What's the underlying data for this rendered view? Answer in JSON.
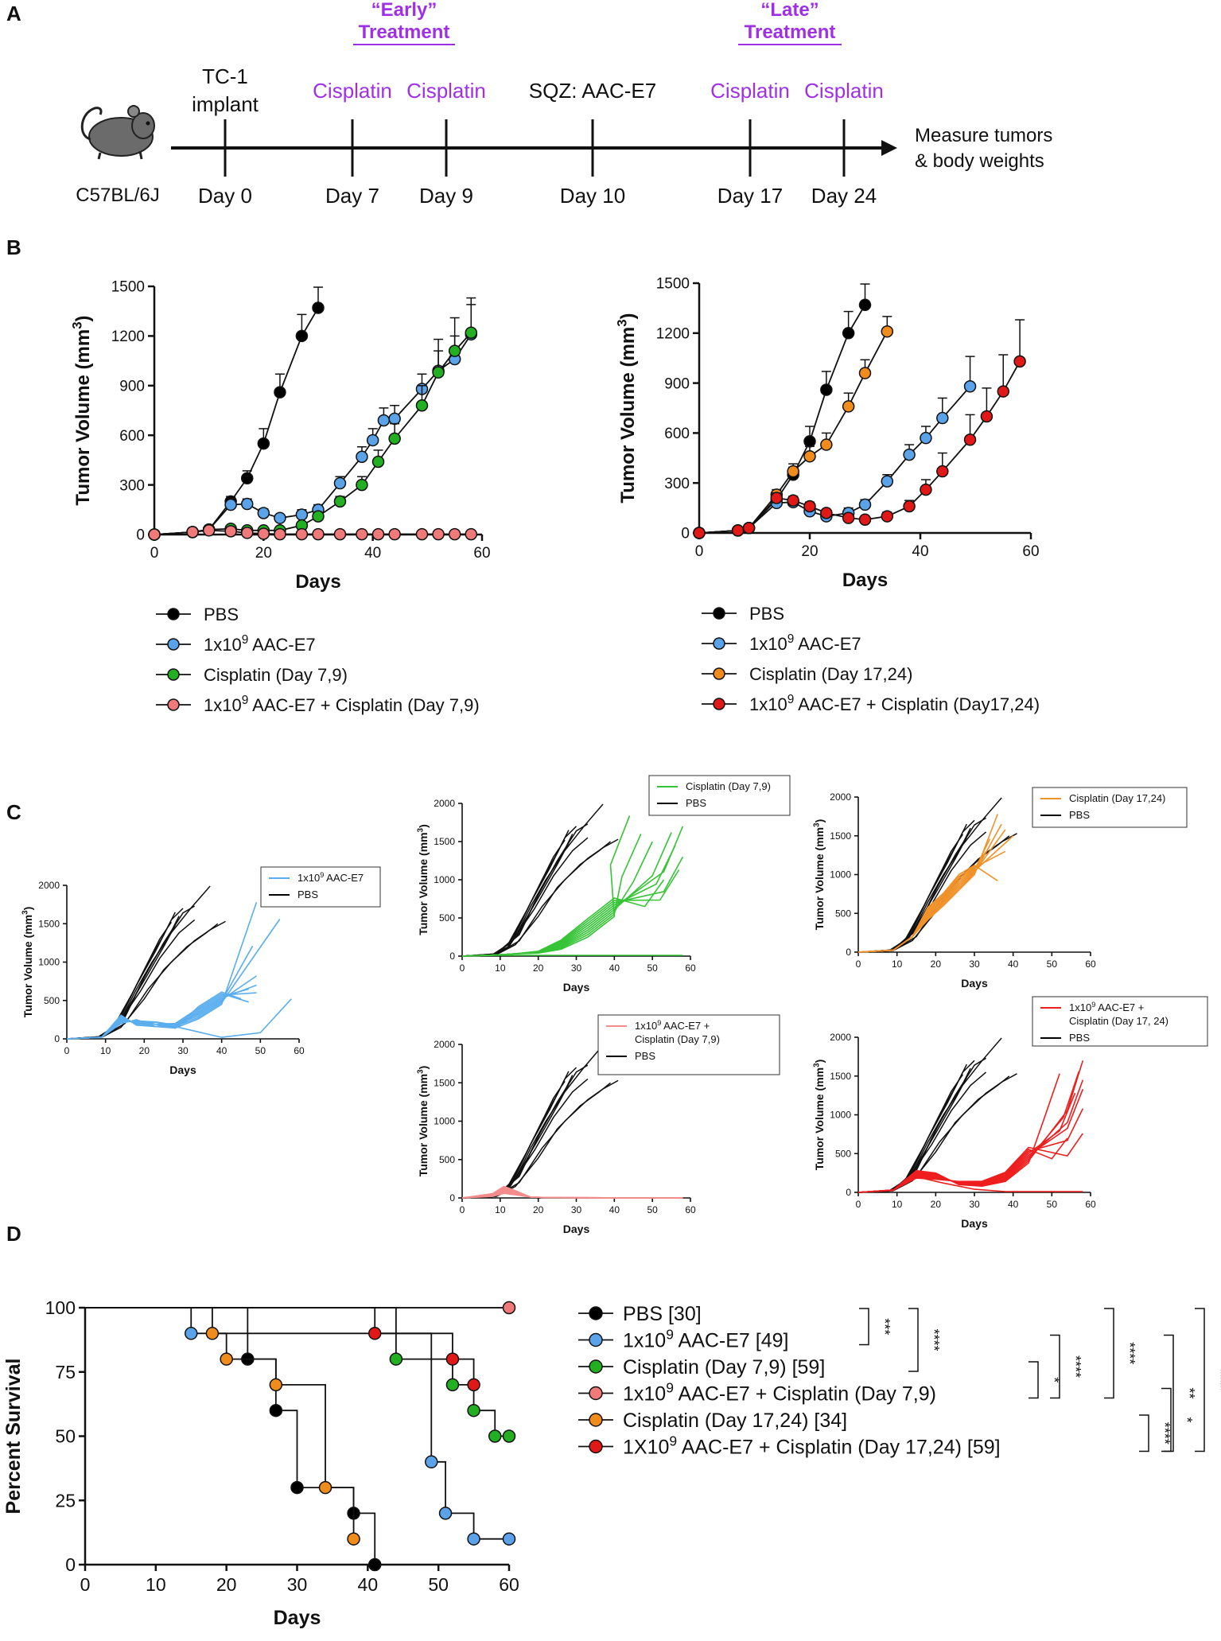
{
  "colors": {
    "pbs": "#000000",
    "aac": "#5aa3e8",
    "cis_early": "#22b022",
    "combo_early": "#f07a7a",
    "cis_late": "#f08c1c",
    "combo_late": "#e01818",
    "purple": "#a030e6",
    "c_blue": "#5aaeee",
    "c_green": "#35c435",
    "c_orange": "#f0922a",
    "c_pink": "#f58c8c",
    "c_red": "#ee1e1e"
  },
  "panels": {
    "a": "A",
    "b": "B",
    "c": "C",
    "d": "D"
  },
  "timeline": {
    "strain": "C57BL/6J",
    "early_quote": "“Early”",
    "early_label": "Treatment",
    "late_quote": "“Late”",
    "late_label": "Treatment",
    "events": [
      {
        "top": "TC-1",
        "top2": "implant",
        "day": "Day 0"
      },
      {
        "top": "Cisplatin",
        "day": "Day 7"
      },
      {
        "top": "Cisplatin",
        "day": "Day 9"
      },
      {
        "top": "SQZ: AAC-E7",
        "day": "Day 10"
      },
      {
        "top": "Cisplatin",
        "day": "Day 17"
      },
      {
        "top": "Cisplatin",
        "day": "Day 24"
      }
    ],
    "end_label1": "Measure tumors",
    "end_label2": "& body weights"
  },
  "chart_data": [
    {
      "id": "b_left",
      "type": "line",
      "ylabel": "Tumor Volume (mm",
      "ylabel_sup": "3",
      "ylabel_end": ")",
      "xlabel": "Days",
      "xlim": [
        0,
        60
      ],
      "ylim": [
        0,
        1500
      ],
      "xticks": [
        "0",
        "20",
        "40",
        "60"
      ],
      "yticks": [
        "0",
        "300",
        "600",
        "900",
        "1200",
        "1500"
      ],
      "series": [
        {
          "name": "PBS",
          "color": "pbs",
          "x": [
            0,
            7,
            10,
            14,
            17,
            20,
            23,
            27,
            30
          ],
          "y": [
            0,
            15,
            30,
            200,
            340,
            550,
            860,
            1200,
            1370
          ],
          "err": [
            0,
            5,
            10,
            30,
            45,
            90,
            110,
            130,
            125
          ]
        },
        {
          "name": "1x10^9 AAC-E7",
          "color": "aac",
          "x": [
            0,
            7,
            10,
            14,
            17,
            20,
            23,
            27,
            30,
            34,
            38,
            40,
            42,
            44,
            49,
            52,
            55,
            58
          ],
          "y": [
            0,
            15,
            30,
            180,
            185,
            130,
            100,
            120,
            150,
            310,
            470,
            570,
            690,
            700,
            880,
            990,
            1060,
            1210
          ],
          "err": [
            0,
            5,
            10,
            40,
            30,
            25,
            20,
            30,
            30,
            40,
            60,
            70,
            75,
            80,
            90,
            120,
            140,
            180
          ]
        },
        {
          "name": "Cisplatin (Day 7,9)",
          "color": "cis_early",
          "x": [
            0,
            7,
            10,
            14,
            17,
            20,
            23,
            27,
            30,
            34,
            38,
            41,
            44,
            49,
            52,
            55,
            58
          ],
          "y": [
            0,
            15,
            30,
            35,
            25,
            25,
            25,
            55,
            110,
            200,
            300,
            440,
            580,
            780,
            980,
            1110,
            1220
          ],
          "err": [
            0,
            5,
            5,
            10,
            8,
            8,
            8,
            12,
            20,
            30,
            50,
            70,
            90,
            120,
            200,
            200,
            210
          ]
        },
        {
          "name": "1x10^9 AAC-E7 + Cisplatin (Day 7,9)",
          "color": "combo_early",
          "x": [
            0,
            7,
            10,
            14,
            17,
            20,
            23,
            27,
            30,
            34,
            38,
            41,
            44,
            49,
            52,
            55,
            58
          ],
          "y": [
            0,
            15,
            25,
            20,
            10,
            5,
            2,
            2,
            2,
            2,
            2,
            2,
            2,
            2,
            2,
            2,
            2
          ],
          "err": [
            0,
            0,
            0,
            0,
            0,
            0,
            0,
            0,
            0,
            0,
            0,
            0,
            0,
            0,
            0,
            0,
            0
          ]
        }
      ],
      "legend": [
        {
          "label": "PBS",
          "color": "pbs"
        },
        {
          "label": "1x10",
          "sup": "9",
          "rest": " AAC-E7",
          "color": "aac"
        },
        {
          "label": "Cisplatin (Day 7,9)",
          "color": "cis_early"
        },
        {
          "label": "1x10",
          "sup": "9",
          "rest": " AAC-E7 + Cisplatin (Day 7,9)",
          "color": "combo_early"
        }
      ]
    },
    {
      "id": "b_right",
      "type": "line",
      "ylabel": "Tumor Volume (mm",
      "ylabel_sup": "3",
      "ylabel_end": ")",
      "xlabel": "Days",
      "xlim": [
        0,
        60
      ],
      "ylim": [
        0,
        1500
      ],
      "xticks": [
        "0",
        "20",
        "40",
        "60"
      ],
      "yticks": [
        "0",
        "300",
        "600",
        "900",
        "1200",
        "1500"
      ],
      "series": [
        {
          "name": "PBS",
          "color": "pbs",
          "x": [
            0,
            7,
            9,
            14,
            17,
            20,
            23,
            27,
            30
          ],
          "y": [
            0,
            15,
            30,
            200,
            350,
            550,
            860,
            1200,
            1370
          ],
          "err": [
            0,
            5,
            10,
            30,
            45,
            90,
            110,
            130,
            125
          ]
        },
        {
          "name": "1x10^9 AAC-E7",
          "color": "aac",
          "x": [
            0,
            7,
            9,
            14,
            17,
            20,
            23,
            27,
            30,
            34,
            38,
            41,
            44,
            49
          ],
          "y": [
            0,
            15,
            30,
            180,
            185,
            130,
            100,
            120,
            170,
            310,
            470,
            570,
            690,
            880
          ],
          "err": [
            0,
            5,
            10,
            40,
            30,
            25,
            20,
            30,
            30,
            40,
            60,
            70,
            120,
            180
          ]
        },
        {
          "name": "Cisplatin (Day 17,24)",
          "color": "cis_late",
          "x": [
            0,
            7,
            9,
            14,
            17,
            20,
            23,
            27,
            30,
            34
          ],
          "y": [
            0,
            15,
            30,
            230,
            370,
            460,
            530,
            760,
            960,
            1210
          ],
          "err": [
            0,
            5,
            10,
            30,
            45,
            60,
            70,
            80,
            80,
            90
          ]
        },
        {
          "name": "1x10^9 AAC-E7 + Cisplatin (Day17,24)",
          "color": "combo_late",
          "x": [
            0,
            7,
            9,
            14,
            17,
            20,
            23,
            27,
            30,
            34,
            38,
            41,
            44,
            49,
            52,
            55,
            58
          ],
          "y": [
            0,
            15,
            30,
            210,
            195,
            160,
            120,
            90,
            80,
            100,
            160,
            260,
            370,
            560,
            700,
            850,
            1030
          ],
          "err": [
            0,
            5,
            10,
            30,
            25,
            25,
            20,
            20,
            20,
            25,
            35,
            60,
            110,
            150,
            170,
            220,
            250
          ]
        }
      ],
      "legend": [
        {
          "label": "PBS",
          "color": "pbs"
        },
        {
          "label": "1x10",
          "sup": "9",
          "rest": " AAC-E7",
          "color": "aac"
        },
        {
          "label": "Cisplatin (Day 17,24)",
          "color": "cis_late"
        },
        {
          "label": "1x10",
          "sup": "9",
          "rest": " AAC-E7 + Cisplatin (Day17,24)",
          "color": "combo_late"
        }
      ]
    },
    {
      "id": "c_aac",
      "type": "line",
      "ylabel": "Tumor Volume (mm",
      "ylabel_sup": "3",
      "ylabel_end": ")",
      "xlabel": "Days",
      "xlim": [
        0,
        60
      ],
      "ylim": [
        0,
        2000
      ],
      "xticks": [
        "0",
        "10",
        "20",
        "30",
        "40",
        "50",
        "60"
      ],
      "yticks": [
        "0",
        "500",
        "1000",
        "1500",
        "2000"
      ],
      "legend": [
        {
          "label": "1x10",
          "sup": "9",
          "rest": " AAC-E7",
          "color": "c_blue"
        },
        {
          "label": "PBS",
          "color": "pbs"
        }
      ],
      "treated_color": "c_blue",
      "treated_profile": "aac"
    },
    {
      "id": "c_cis_early",
      "type": "line",
      "ylabel": "Tumor Volume (mm",
      "ylabel_sup": "3",
      "ylabel_end": ")",
      "xlabel": "Days",
      "xlim": [
        0,
        60
      ],
      "ylim": [
        0,
        2000
      ],
      "xticks": [
        "0",
        "10",
        "20",
        "30",
        "40",
        "50",
        "60"
      ],
      "yticks": [
        "0",
        "500",
        "1000",
        "1500",
        "2000"
      ],
      "legend": [
        {
          "label": "Cisplatin (Day 7,9)",
          "color": "c_green"
        },
        {
          "label": "PBS",
          "color": "pbs"
        }
      ],
      "treated_color": "c_green",
      "treated_profile": "cis_early"
    },
    {
      "id": "c_cis_late",
      "type": "line",
      "ylabel": "Tumor Volume (mm",
      "ylabel_sup": "3",
      "ylabel_end": ")",
      "xlabel": "Days",
      "xlim": [
        0,
        60
      ],
      "ylim": [
        0,
        2000
      ],
      "xticks": [
        "0",
        "10",
        "20",
        "30",
        "40",
        "50",
        "60"
      ],
      "yticks": [
        "0",
        "500",
        "1000",
        "1500",
        "2000"
      ],
      "legend": [
        {
          "label": "Cisplatin (Day 17,24)",
          "color": "c_orange"
        },
        {
          "label": "PBS",
          "color": "pbs"
        }
      ],
      "treated_color": "c_orange",
      "treated_profile": "cis_late"
    },
    {
      "id": "c_combo_early",
      "type": "line",
      "ylabel": "Tumor Volume (mm",
      "ylabel_sup": "3",
      "ylabel_end": ")",
      "xlabel": "Days",
      "xlim": [
        0,
        60
      ],
      "ylim": [
        0,
        2000
      ],
      "xticks": [
        "0",
        "10",
        "20",
        "30",
        "40",
        "50",
        "60"
      ],
      "yticks": [
        "0",
        "500",
        "1000",
        "1500",
        "2000"
      ],
      "legend": [
        {
          "label": "1x10",
          "sup": "9",
          "rest": " AAC-E7 +",
          "line2": "Cisplatin (Day 7,9)",
          "color": "c_pink"
        },
        {
          "label": "PBS",
          "color": "pbs"
        }
      ],
      "treated_color": "c_pink",
      "treated_profile": "combo_early"
    },
    {
      "id": "c_combo_late",
      "type": "line",
      "ylabel": "Tumor Volume (mm",
      "ylabel_sup": "3",
      "ylabel_end": ")",
      "xlabel": "Days",
      "xlim": [
        0,
        60
      ],
      "ylim": [
        0,
        2000
      ],
      "xticks": [
        "0",
        "10",
        "20",
        "30",
        "40",
        "50",
        "60"
      ],
      "yticks": [
        "0",
        "500",
        "1000",
        "1500",
        "2000"
      ],
      "legend": [
        {
          "label": "1x10",
          "sup": "9",
          "rest": " AAC-E7 +",
          "line2": "Cisplatin (Day 17, 24)",
          "color": "c_red"
        },
        {
          "label": "PBS",
          "color": "pbs"
        }
      ],
      "treated_color": "c_red",
      "treated_profile": "combo_late"
    },
    {
      "id": "d_survival",
      "type": "line",
      "ylabel": "Percent Survival",
      "xlabel": "Days",
      "xlim": [
        0,
        60
      ],
      "ylim": [
        0,
        100
      ],
      "xticks": [
        "0",
        "10",
        "20",
        "30",
        "40",
        "50",
        "60"
      ],
      "yticks": [
        "0",
        "25",
        "50",
        "75",
        "100"
      ],
      "series": [
        {
          "name": "PBS [30]",
          "color": "pbs",
          "x": [
            0,
            23,
            27,
            30,
            38,
            41
          ],
          "y": [
            100,
            80,
            60,
            30,
            20,
            0
          ],
          "marks": [
            [
              23,
              80
            ],
            [
              27,
              60
            ],
            [
              30,
              30
            ],
            [
              38,
              20
            ],
            [
              41,
              0
            ]
          ]
        },
        {
          "name": "1x10^9 AAC-E7 [49]",
          "color": "aac",
          "x": [
            0,
            15,
            49,
            51,
            55,
            60
          ],
          "y": [
            100,
            90,
            40,
            20,
            10,
            10
          ],
          "marks": [
            [
              15,
              90
            ],
            [
              49,
              40
            ],
            [
              51,
              20
            ],
            [
              55,
              10
            ],
            [
              60,
              10
            ]
          ]
        },
        {
          "name": "Cisplatin (Day 7,9) [59]",
          "color": "cis_early",
          "x": [
            0,
            44,
            52,
            55,
            58,
            60
          ],
          "y": [
            100,
            80,
            70,
            60,
            50,
            50
          ],
          "marks": [
            [
              44,
              80
            ],
            [
              52,
              70
            ],
            [
              55,
              60
            ],
            [
              58,
              50
            ],
            [
              60,
              50
            ]
          ]
        },
        {
          "name": "1x10^9 AAC-E7 + Cisplatin (Day 7,9)",
          "color": "combo_early",
          "x": [
            0,
            60
          ],
          "y": [
            100,
            100
          ],
          "marks": [
            [
              60,
              100
            ]
          ]
        },
        {
          "name": "Cisplatin (Day 17,24) [34]",
          "color": "cis_late",
          "x": [
            0,
            18,
            20,
            27,
            34,
            38
          ],
          "y": [
            100,
            90,
            80,
            70,
            30,
            10
          ],
          "marks": [
            [
              18,
              90
            ],
            [
              20,
              80
            ],
            [
              27,
              70
            ],
            [
              34,
              30
            ],
            [
              38,
              10
            ]
          ]
        },
        {
          "name": "1X10^9 AAC-E7 + Cisplatin (Day 17,24) [59]",
          "color": "combo_late",
          "x": [
            0,
            41,
            52,
            55
          ],
          "y": [
            100,
            90,
            80,
            70
          ],
          "marks": [
            [
              41,
              90
            ],
            [
              52,
              80
            ],
            [
              55,
              70
            ]
          ]
        }
      ],
      "legend": [
        {
          "label": "PBS [30]",
          "color": "pbs"
        },
        {
          "label": "1x10",
          "sup": "9",
          "rest": " AAC-E7 [49]",
          "color": "aac"
        },
        {
          "label": "Cisplatin (Day 7,9) [59]",
          "color": "cis_early"
        },
        {
          "label": "1x10",
          "sup": "9",
          "rest": " AAC-E7 + Cisplatin (Day 7,9)",
          "color": "combo_early"
        },
        {
          "label": "Cisplatin (Day 17,24) [34]",
          "color": "cis_late"
        },
        {
          "label": "1X10",
          "sup": "9",
          "rest": " AAC-E7 + Cisplatin (Day 17,24) [59]",
          "color": "combo_late"
        }
      ],
      "significance": [
        {
          "rows": [
            0,
            1
          ],
          "stars": "***"
        },
        {
          "rows": [
            0,
            2
          ],
          "stars": "****"
        },
        {
          "rows": [
            2,
            3
          ],
          "stars": "*"
        },
        {
          "rows": [
            1,
            3
          ],
          "stars": "****"
        },
        {
          "rows": [
            0,
            3
          ],
          "stars": "****"
        },
        {
          "rows": [
            4,
            5
          ],
          "stars": "****"
        },
        {
          "rows": [
            3,
            5
          ],
          "stars": "*"
        },
        {
          "rows": [
            1,
            5
          ],
          "stars": "**"
        },
        {
          "rows": [
            0,
            5
          ],
          "stars": "****"
        }
      ]
    }
  ]
}
